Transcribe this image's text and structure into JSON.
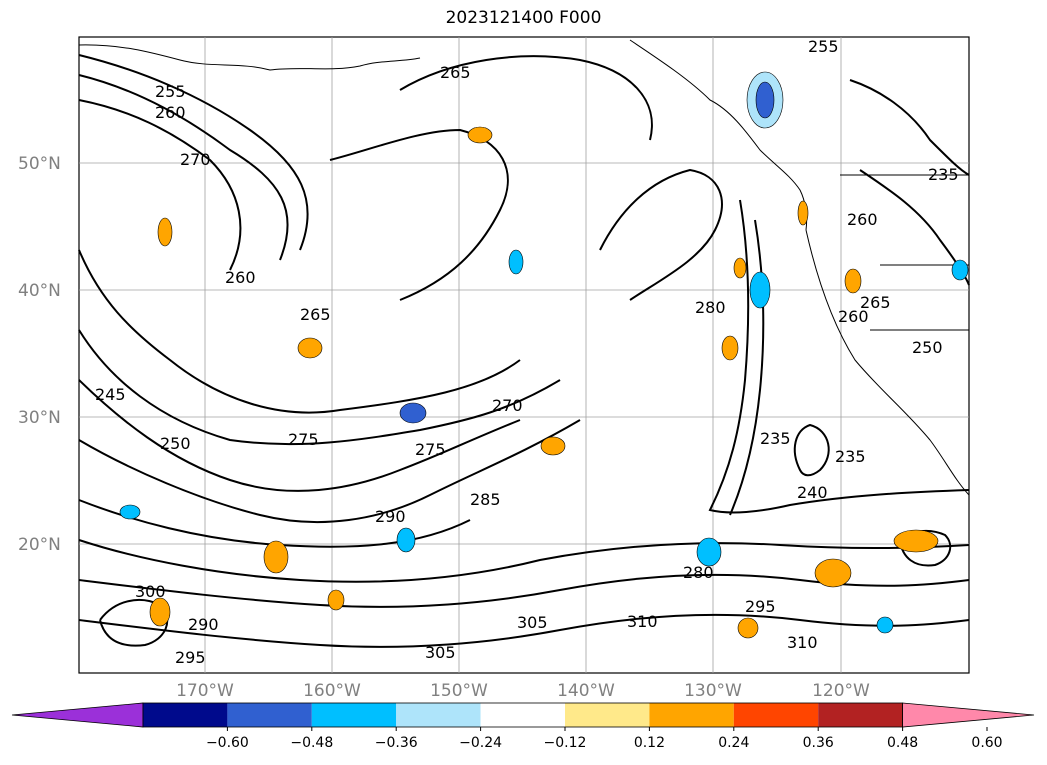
{
  "title": "2023121400 F000",
  "latitude_labels": [
    "50°N",
    "40°N",
    "30°N",
    "20°N"
  ],
  "longitude_labels": [
    "170°W",
    "160°W",
    "150°W",
    "140°W",
    "130°W",
    "120°W"
  ],
  "contour_labels": [
    "255",
    "260",
    "265",
    "270",
    "275",
    "280",
    "285",
    "290",
    "295",
    "300",
    "305",
    "310",
    "235",
    "240",
    "245",
    "250"
  ],
  "colorbar": {
    "ticks": [
      "−0.60",
      "−0.48",
      "−0.36",
      "−0.24",
      "−0.12",
      "0.12",
      "0.24",
      "0.36",
      "0.48",
      "0.60"
    ],
    "colors": [
      "#9b30d9",
      "#000a8c",
      "#3060d0",
      "#00bfff",
      "#aee4fa",
      "#ffffff",
      "#ffe98a",
      "#ffa500",
      "#ff4500",
      "#b22222",
      "#ff88aa"
    ]
  },
  "shading_colors": {
    "positive_light": "#ffe98a",
    "positive_mid": "#ffa500",
    "negative_light": "#aee4fa",
    "negative_mid": "#00bfff",
    "negative_strong": "#3060d0"
  }
}
